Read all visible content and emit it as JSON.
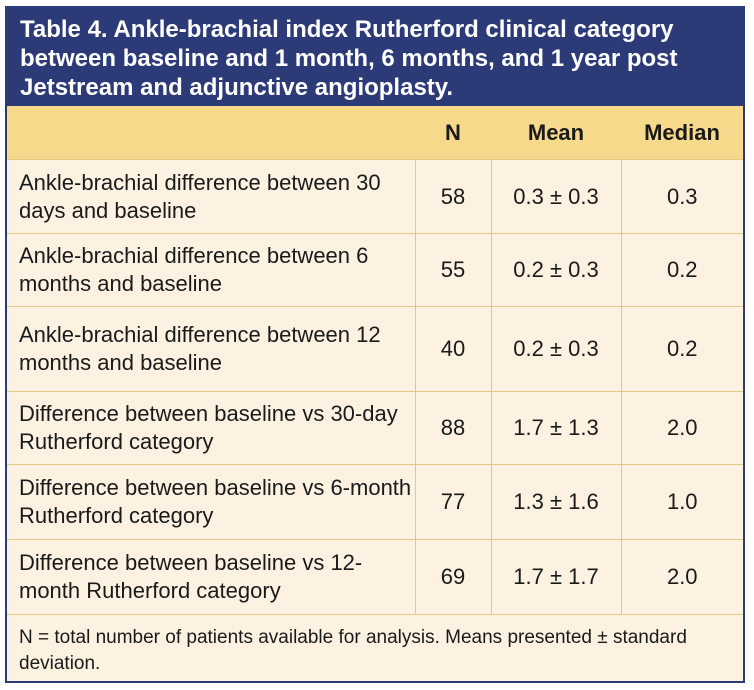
{
  "title": "Table 4. Ankle-brachial index Rutherford clinical category between baseline and 1 month, 6 months, and 1 year post Jetstream and adjunctive angioplasty.",
  "headers": [
    "",
    "N",
    "Mean",
    "Median"
  ],
  "rows": [
    {
      "label": "Ankle-brachial difference between 30 days and baseline",
      "n": "58",
      "mean": "0.3 ± 0.3",
      "median": "0.3"
    },
    {
      "label": "Ankle-brachial difference between 6 months and baseline",
      "n": "55",
      "mean": "0.2 ± 0.3",
      "median": "0.2"
    },
    {
      "label": "Ankle-brachial difference between 12 months and baseline",
      "n": "40",
      "mean": "0.2 ± 0.3",
      "median": "0.2"
    },
    {
      "label": "Difference between baseline vs 30-day Rutherford category",
      "n": "88",
      "mean": "1.7 ± 1.3",
      "median": "2.0"
    },
    {
      "label": "Difference between baseline vs 6-month Rutherford category",
      "n": "77",
      "mean": "1.3 ± 1.6",
      "median": "1.0"
    },
    {
      "label": "Difference between baseline vs 12-month Rutherford category",
      "n": "69",
      "mean": "1.7 ± 1.7",
      "median": "2.0"
    }
  ],
  "footnote": "N = total number of patients available for analysis. Means presented ± standard deviation.",
  "colors": {
    "title_bg": "#2c3a78",
    "header_bg": "#f6d98a",
    "body_bg": "#fdf2e1",
    "rule": "#e3c983"
  }
}
